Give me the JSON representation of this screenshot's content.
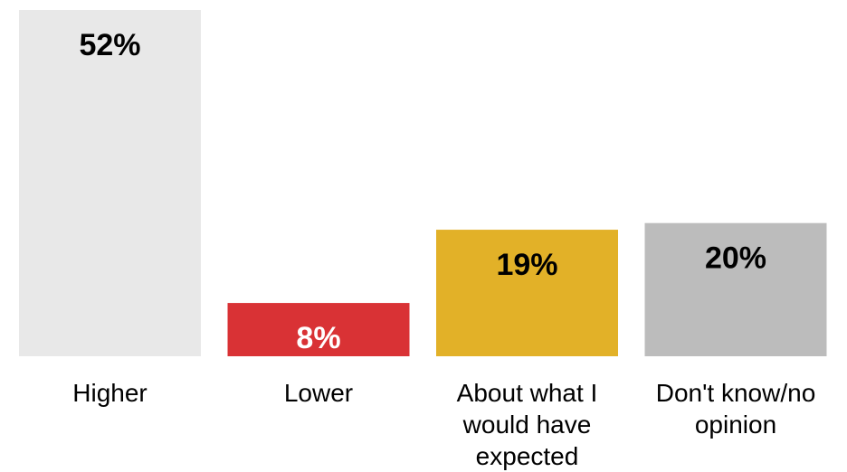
{
  "chart_data": {
    "type": "bar",
    "categories": [
      "Higher",
      "Lower",
      "About what I would have expected",
      "Don't know/no opinion"
    ],
    "category_lines": [
      [
        "Higher"
      ],
      [
        "Lower"
      ],
      [
        "About what I",
        "would have",
        "expected"
      ],
      [
        "Don't know/no",
        "opinion"
      ]
    ],
    "values": [
      52,
      8,
      19,
      20
    ],
    "value_labels": [
      "52%",
      "8%",
      "19%",
      "20%"
    ],
    "colors": [
      "#e8e8e8",
      "#d93235",
      "#e2b128",
      "#bcbcbc"
    ],
    "value_label_colors": [
      "#000000",
      "#ffffff",
      "#000000",
      "#000000"
    ],
    "ylim": [
      0,
      52
    ],
    "grid": false,
    "legend": "none"
  }
}
